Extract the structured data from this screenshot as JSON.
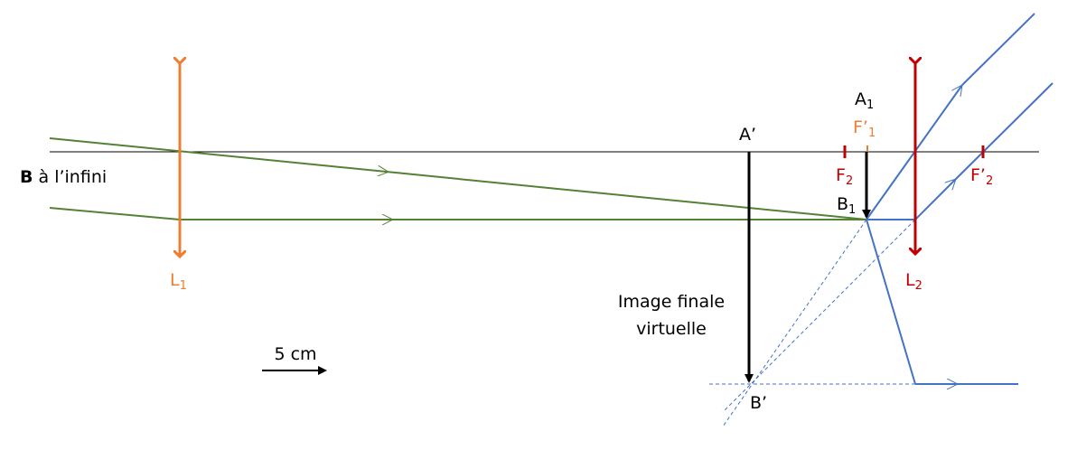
{
  "labels": {
    "source": {
      "bold": "B",
      "rest": " à l’infini"
    },
    "lens1": {
      "main": "L",
      "sub": "1"
    },
    "lens2": {
      "main": "L",
      "sub": "2"
    },
    "a_prime": "A’",
    "b_prime": "B’",
    "a1": {
      "main": "A",
      "sub": "1"
    },
    "b1": {
      "main": "B",
      "sub": "1"
    },
    "f1_prime": {
      "main": "F’",
      "sub": "1"
    },
    "f2": {
      "main": "F",
      "sub": "2"
    },
    "f2_prime": {
      "main": "F’",
      "sub": "2"
    },
    "final_image": [
      "Image finale",
      "virtuelle"
    ],
    "scale": "5 cm"
  }
}
